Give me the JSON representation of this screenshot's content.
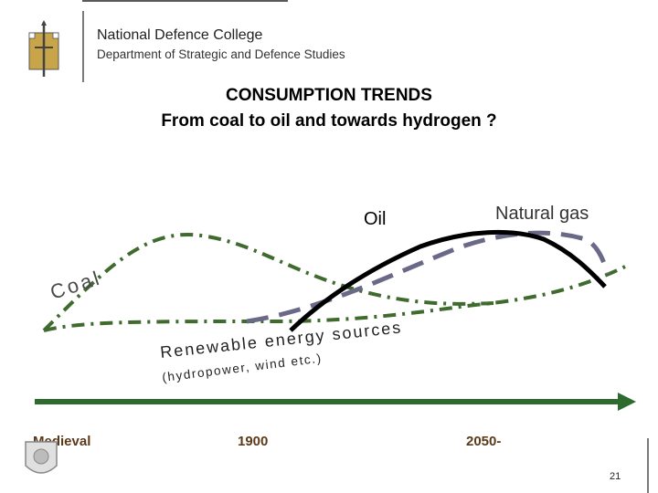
{
  "header": {
    "institution": "National Defence College",
    "department": "Department of Strategic and Defence Studies"
  },
  "title": {
    "line1": "CONSUMPTION TRENDS",
    "line2": "From coal to oil and towards hydrogen ?"
  },
  "labels": {
    "coal": "Coal",
    "oil": "Oil",
    "natural_gas": "Natural gas",
    "renewable": "Renewable energy sources",
    "renewable_sub": "(hydropower, wind etc.)"
  },
  "timeline": {
    "start": "Medieval",
    "mid": "1900",
    "end": "2050-"
  },
  "colors": {
    "coal": "#3f6b2e",
    "oil": "#000000",
    "gas": "#6a6a88",
    "arrow": "#2e6b2e",
    "timeline_text": "#5b3a1a"
  },
  "footer": {
    "page_number": "21"
  }
}
